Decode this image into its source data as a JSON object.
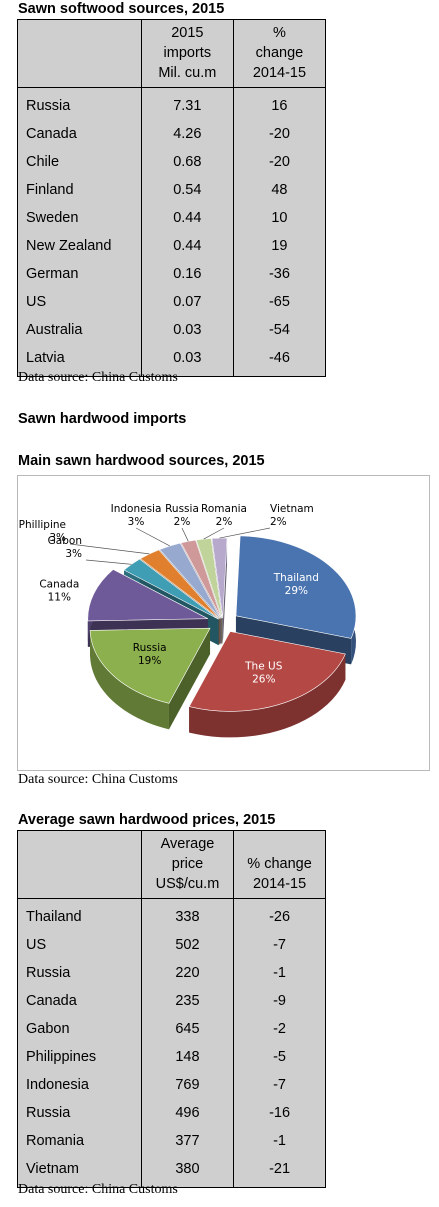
{
  "softwood": {
    "title": "Sawn softwood sources, 2015",
    "headers": {
      "c1": "",
      "c2": [
        "2015",
        "imports",
        "Mil. cu.m"
      ],
      "c3": [
        "%",
        "change",
        "2014-15"
      ]
    },
    "rows": [
      {
        "country": "Russia",
        "imports": "7.31",
        "change": "16"
      },
      {
        "country": "Canada",
        "imports": "4.26",
        "change": "-20"
      },
      {
        "country": "Chile",
        "imports": "0.68",
        "change": "-20"
      },
      {
        "country": "Finland",
        "imports": "0.54",
        "change": "48"
      },
      {
        "country": "Sweden",
        "imports": "0.44",
        "change": "10"
      },
      {
        "country": "New Zealand",
        "imports": "0.44",
        "change": "19"
      },
      {
        "country": "German",
        "imports": "0.16",
        "change": "-36"
      },
      {
        "country": "US",
        "imports": "0.07",
        "change": "-65"
      },
      {
        "country": "Australia",
        "imports": "0.03",
        "change": "-54"
      },
      {
        "country": "Latvia",
        "imports": "0.03",
        "change": "-46"
      }
    ],
    "source": "Data source: China Customs"
  },
  "hardwood_section_title": "Sawn hardwood imports",
  "chart_data": {
    "type": "pie",
    "title": "Main sawn hardwood sources, 2015",
    "slices": [
      {
        "label": "Thailand",
        "value": 29,
        "value_label": "29%",
        "color": "#4a74b0"
      },
      {
        "label": "The US",
        "value": 26,
        "value_label": "26%",
        "color": "#b44845"
      },
      {
        "label": "Russia",
        "value": 19,
        "value_label": "19%",
        "color": "#8bb04d"
      },
      {
        "label": "Canada",
        "value": 11,
        "value_label": "11%",
        "color": "#6f5a99"
      },
      {
        "label": "Gabon",
        "value": 3,
        "value_label": "3%",
        "color": "#3f9db4"
      },
      {
        "label": "Phillipine",
        "value": 3,
        "value_label": "3%",
        "color": "#e0802e"
      },
      {
        "label": "Indonesia",
        "value": 3,
        "value_label": "3%",
        "color": "#98a9cf"
      },
      {
        "label": "Russia",
        "value": 2,
        "value_label": "2%",
        "color": "#cf9999"
      },
      {
        "label": "Romania",
        "value": 2,
        "value_label": "2%",
        "color": "#c0d39b"
      },
      {
        "label": "Vietnam",
        "value": 2,
        "value_label": "2%",
        "color": "#b6a9cc"
      }
    ],
    "source": "Data source: China Customs"
  },
  "prices": {
    "title": "Average sawn hardwood prices, 2015",
    "headers": {
      "c1": "",
      "c2": [
        "Average",
        "price",
        "US$/cu.m"
      ],
      "c3": [
        "% change",
        "2014-15"
      ]
    },
    "rows": [
      {
        "country": "Thailand",
        "price": "338",
        "change": "-26"
      },
      {
        "country": "US",
        "price": "502",
        "change": "-7"
      },
      {
        "country": "Russia",
        "price": "220",
        "change": "-1"
      },
      {
        "country": "Canada",
        "price": "235",
        "change": "-9"
      },
      {
        "country": "Gabon",
        "price": "645",
        "change": "-2"
      },
      {
        "country": "Philippines",
        "price": "148",
        "change": "-5"
      },
      {
        "country": "Indonesia",
        "price": "769",
        "change": "-7"
      },
      {
        "country": "Russia",
        "price": "496",
        "change": "-16"
      },
      {
        "country": "Romania",
        "price": "377",
        "change": "-1"
      },
      {
        "country": "Vietnam",
        "price": "380",
        "change": "-21"
      }
    ],
    "source": "Data source: China Customs"
  }
}
